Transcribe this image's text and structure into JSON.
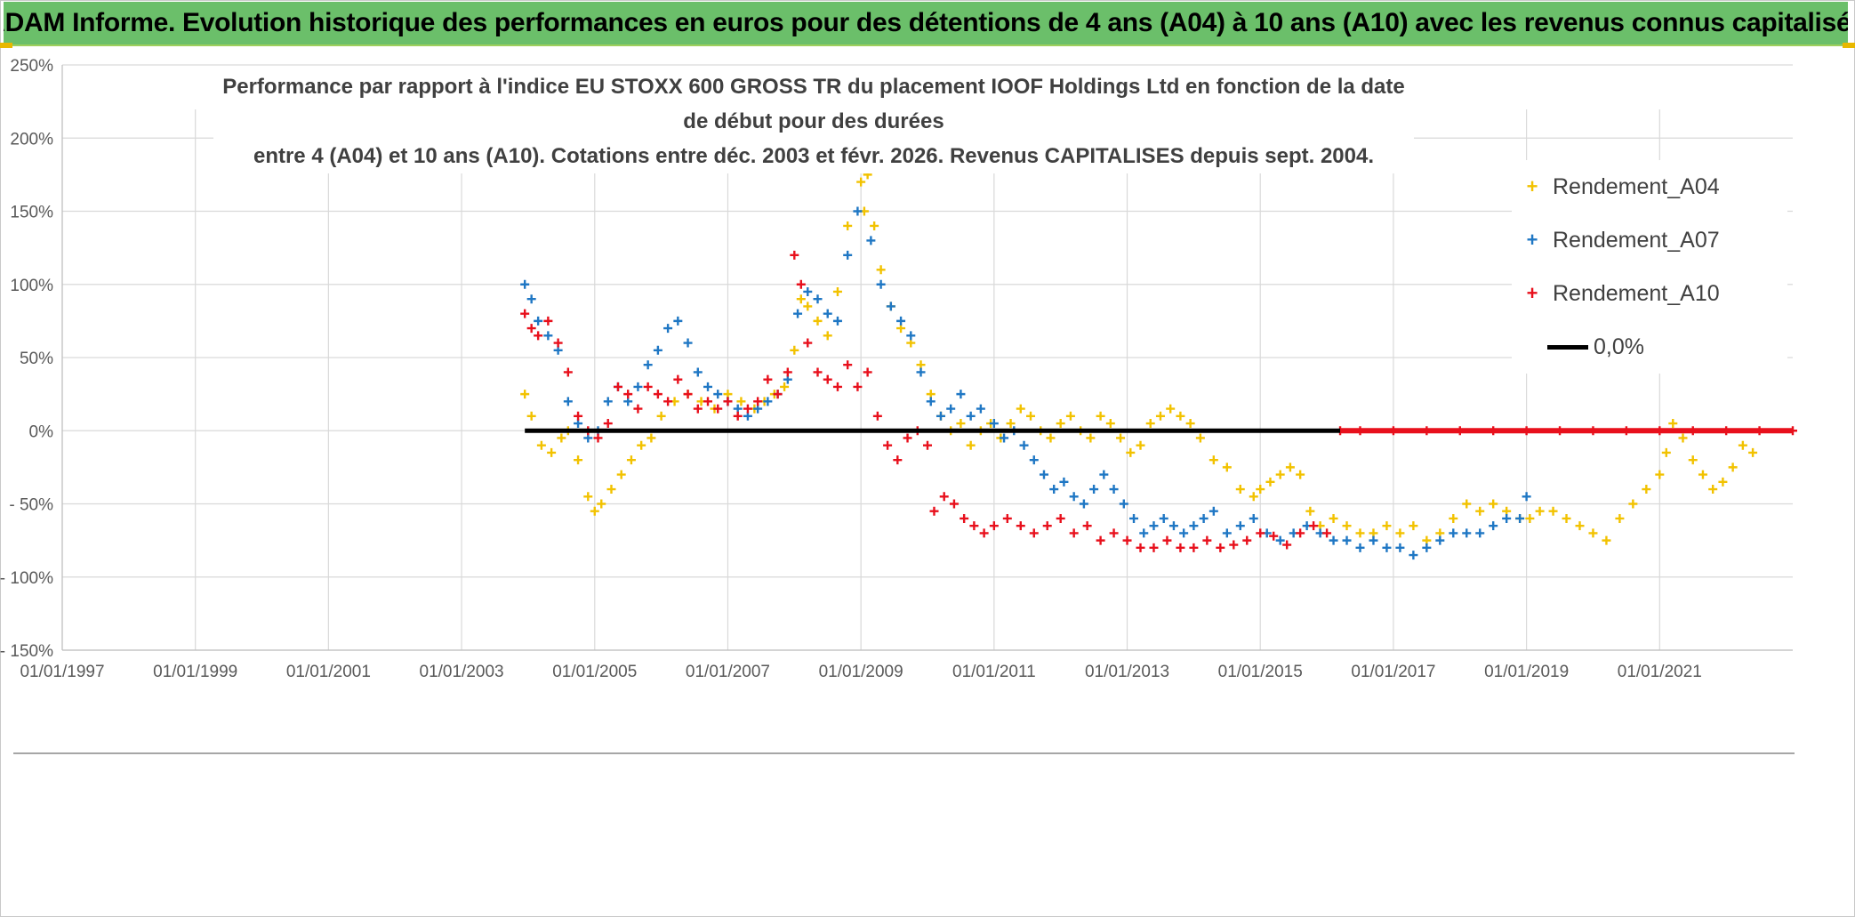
{
  "banner": {
    "title": "ADAM Informe. Evolution historique des performances en euros pour des détentions de 4 ans (A04) à 10 ans (A10) avec les revenus connus capitalisés"
  },
  "colors": {
    "banner_bg": "#6bbf6a",
    "a04": "#f2c200",
    "a07": "#1f77c4",
    "a10": "#e8101c",
    "zero_line": "#000000",
    "grid": "#d9d9d9"
  },
  "chart_data": {
    "type": "scatter",
    "title_line1": "Performance par rapport à l'indice EU STOXX 600 GROSS TR  du placement IOOF Holdings Ltd en fonction de la date de début pour des durées",
    "title_line2": "entre 4 (A04) et 10 ans (A10). Cotations entre déc. 2003 et févr. 2026. Revenus CAPITALISES depuis sept. 2004.",
    "xlabel": "",
    "ylabel": "",
    "x_unit": "year",
    "xlim": [
      1997.0,
      2023.0
    ],
    "ylim": [
      -150,
      250
    ],
    "x_ticks": [
      1997,
      1999,
      2001,
      2003,
      2005,
      2007,
      2009,
      2011,
      2013,
      2015,
      2017,
      2019,
      2021
    ],
    "x_tick_labels": [
      "01/01/1997",
      "01/01/1999",
      "01/01/2001",
      "01/01/2003",
      "01/01/2005",
      "01/01/2007",
      "01/01/2009",
      "01/01/2011",
      "01/01/2013",
      "01/01/2015",
      "01/01/2017",
      "01/01/2019",
      "01/01/2021"
    ],
    "y_ticks": [
      250,
      200,
      150,
      100,
      50,
      0,
      -50,
      -100,
      -150
    ],
    "y_tick_labels": [
      "250%",
      "200%",
      "150%",
      "100%",
      "50%",
      "0%",
      "- 50%",
      "- 100%",
      "- 150%"
    ],
    "legend_position": "top-right",
    "series": [
      {
        "name": "Rendement_A04",
        "marker": "+",
        "color": "#f2c200",
        "x": [
          2003.95,
          2004.05,
          2004.2,
          2004.35,
          2004.5,
          2004.6,
          2004.75,
          2004.9,
          2005.0,
          2005.1,
          2005.25,
          2005.4,
          2005.55,
          2005.7,
          2005.85,
          2006.0,
          2006.2,
          2006.4,
          2006.6,
          2006.8,
          2007.0,
          2007.2,
          2007.4,
          2007.55,
          2007.7,
          2007.85,
          2008.0,
          2008.1,
          2008.2,
          2008.35,
          2008.5,
          2008.65,
          2008.8,
          2008.95,
          2009.0,
          2009.05,
          2009.1,
          2009.2,
          2009.3,
          2009.45,
          2009.6,
          2009.75,
          2009.9,
          2010.05,
          2010.2,
          2010.35,
          2010.5,
          2010.65,
          2010.8,
          2010.95,
          2011.1,
          2011.25,
          2011.4,
          2011.55,
          2011.7,
          2011.85,
          2012.0,
          2012.15,
          2012.3,
          2012.45,
          2012.6,
          2012.75,
          2012.9,
          2013.05,
          2013.2,
          2013.35,
          2013.5,
          2013.65,
          2013.8,
          2013.95,
          2014.1,
          2014.3,
          2014.5,
          2014.7,
          2014.9,
          2015.0,
          2015.15,
          2015.3,
          2015.45,
          2015.6,
          2015.75,
          2015.9,
          2016.1,
          2016.3,
          2016.5,
          2016.7,
          2016.9,
          2017.1,
          2017.3,
          2017.5,
          2017.7,
          2017.9,
          2018.1,
          2018.3,
          2018.5,
          2018.7,
          2018.9,
          2019.05,
          2019.2,
          2019.4,
          2019.6,
          2019.8,
          2020.0,
          2020.2,
          2020.4,
          2020.6,
          2020.8,
          2021.0,
          2021.1,
          2021.2,
          2021.35,
          2021.5,
          2021.65,
          2021.8,
          2021.95,
          2022.1,
          2022.25,
          2022.4
        ],
        "values": [
          25,
          10,
          -10,
          -15,
          -5,
          0,
          -20,
          -45,
          -55,
          -50,
          -40,
          -30,
          -20,
          -10,
          -5,
          10,
          20,
          25,
          20,
          15,
          25,
          20,
          15,
          20,
          25,
          30,
          55,
          90,
          85,
          75,
          65,
          95,
          140,
          200,
          170,
          150,
          175,
          140,
          110,
          85,
          70,
          60,
          45,
          25,
          10,
          0,
          5,
          -10,
          0,
          5,
          -5,
          5,
          15,
          10,
          0,
          -5,
          5,
          10,
          0,
          -5,
          10,
          5,
          -5,
          -15,
          -10,
          5,
          10,
          15,
          10,
          5,
          -5,
          -20,
          -25,
          -40,
          -45,
          -40,
          -35,
          -30,
          -25,
          -30,
          -55,
          -65,
          -60,
          -65,
          -70,
          -70,
          -65,
          -70,
          -65,
          -75,
          -70,
          -60,
          -50,
          -55,
          -50,
          -55,
          -60,
          -60,
          -55,
          -55,
          -60,
          -65,
          -70,
          -75,
          -60,
          -50,
          -40,
          -30,
          -15,
          5,
          -5,
          -20,
          -30,
          -40,
          -35,
          -25,
          -10,
          -15
        ]
      },
      {
        "name": "Rendement_A07",
        "marker": "+",
        "color": "#1f77c4",
        "x": [
          2003.95,
          2004.05,
          2004.15,
          2004.3,
          2004.45,
          2004.6,
          2004.75,
          2004.9,
          2005.05,
          2005.2,
          2005.35,
          2005.5,
          2005.65,
          2005.8,
          2005.95,
          2006.1,
          2006.25,
          2006.4,
          2006.55,
          2006.7,
          2006.85,
          2007.0,
          2007.15,
          2007.3,
          2007.45,
          2007.6,
          2007.75,
          2007.9,
          2008.05,
          2008.2,
          2008.35,
          2008.5,
          2008.65,
          2008.8,
          2008.95,
          2009.05,
          2009.15,
          2009.3,
          2009.45,
          2009.6,
          2009.75,
          2009.9,
          2010.05,
          2010.2,
          2010.35,
          2010.5,
          2010.65,
          2010.8,
          2011.0,
          2011.15,
          2011.3,
          2011.45,
          2011.6,
          2011.75,
          2011.9,
          2012.05,
          2012.2,
          2012.35,
          2012.5,
          2012.65,
          2012.8,
          2012.95,
          2013.1,
          2013.25,
          2013.4,
          2013.55,
          2013.7,
          2013.85,
          2014.0,
          2014.15,
          2014.3,
          2014.5,
          2014.7,
          2014.9,
          2015.1,
          2015.3,
          2015.5,
          2015.7,
          2015.9,
          2016.1,
          2016.3,
          2016.5,
          2016.7,
          2016.9,
          2017.1,
          2017.3,
          2017.5,
          2017.7,
          2017.9,
          2018.1,
          2018.3,
          2018.5,
          2018.7,
          2018.9,
          2019.0
        ],
        "values": [
          100,
          90,
          75,
          65,
          55,
          20,
          5,
          -5,
          0,
          20,
          30,
          20,
          30,
          45,
          55,
          70,
          75,
          60,
          40,
          30,
          25,
          20,
          15,
          10,
          15,
          20,
          25,
          35,
          80,
          95,
          90,
          80,
          75,
          120,
          150,
          180,
          130,
          100,
          85,
          75,
          65,
          40,
          20,
          10,
          15,
          25,
          10,
          15,
          5,
          -5,
          0,
          -10,
          -20,
          -30,
          -40,
          -35,
          -45,
          -50,
          -40,
          -30,
          -40,
          -50,
          -60,
          -70,
          -65,
          -60,
          -65,
          -70,
          -65,
          -60,
          -55,
          -70,
          -65,
          -60,
          -70,
          -75,
          -70,
          -65,
          -70,
          -75,
          -75,
          -80,
          -75,
          -80,
          -80,
          -85,
          -80,
          -75,
          -70,
          -70,
          -70,
          -65,
          -60,
          -60,
          -45
        ]
      },
      {
        "name": "Rendement_A10",
        "marker": "+",
        "color": "#e8101c",
        "x": [
          2003.95,
          2004.05,
          2004.15,
          2004.3,
          2004.45,
          2004.6,
          2004.75,
          2004.9,
          2005.05,
          2005.2,
          2005.35,
          2005.5,
          2005.65,
          2005.8,
          2005.95,
          2006.1,
          2006.25,
          2006.4,
          2006.55,
          2006.7,
          2006.85,
          2007.0,
          2007.15,
          2007.3,
          2007.45,
          2007.6,
          2007.75,
          2007.9,
          2008.0,
          2008.1,
          2008.2,
          2008.35,
          2008.5,
          2008.65,
          2008.8,
          2008.95,
          2009.1,
          2009.25,
          2009.4,
          2009.55,
          2009.7,
          2009.85,
          2010.0,
          2010.1,
          2010.25,
          2010.4,
          2010.55,
          2010.7,
          2010.85,
          2011.0,
          2011.2,
          2011.4,
          2011.6,
          2011.8,
          2012.0,
          2012.2,
          2012.4,
          2012.6,
          2012.8,
          2013.0,
          2013.2,
          2013.4,
          2013.6,
          2013.8,
          2014.0,
          2014.2,
          2014.4,
          2014.6,
          2014.8,
          2015.0,
          2015.2,
          2015.4,
          2015.6,
          2015.8,
          2016.0,
          2016.2,
          2016.5,
          2017.0,
          2017.5,
          2018.0,
          2018.5,
          2019.0,
          2019.5,
          2020.0,
          2020.5,
          2021.0,
          2021.5,
          2022.0,
          2022.5,
          2023.0
        ],
        "values": [
          80,
          70,
          65,
          75,
          60,
          40,
          10,
          0,
          -5,
          5,
          30,
          25,
          15,
          30,
          25,
          20,
          35,
          25,
          15,
          20,
          15,
          20,
          10,
          15,
          20,
          35,
          25,
          40,
          120,
          100,
          60,
          40,
          35,
          30,
          45,
          30,
          40,
          10,
          -10,
          -20,
          -5,
          0,
          -10,
          -55,
          -45,
          -50,
          -60,
          -65,
          -70,
          -65,
          -60,
          -65,
          -70,
          -65,
          -60,
          -70,
          -65,
          -75,
          -70,
          -75,
          -80,
          -80,
          -75,
          -80,
          -80,
          -75,
          -80,
          -78,
          -75,
          -70,
          -72,
          -78,
          -70,
          -65,
          -70,
          0,
          0,
          0,
          0,
          0,
          0,
          0,
          0,
          0,
          0,
          0,
          0,
          0,
          0,
          0
        ]
      },
      {
        "name": "0,0%",
        "type": "line",
        "color": "#000000",
        "x": [
          2003.95,
          2023.0
        ],
        "values": [
          0,
          0
        ]
      }
    ]
  }
}
